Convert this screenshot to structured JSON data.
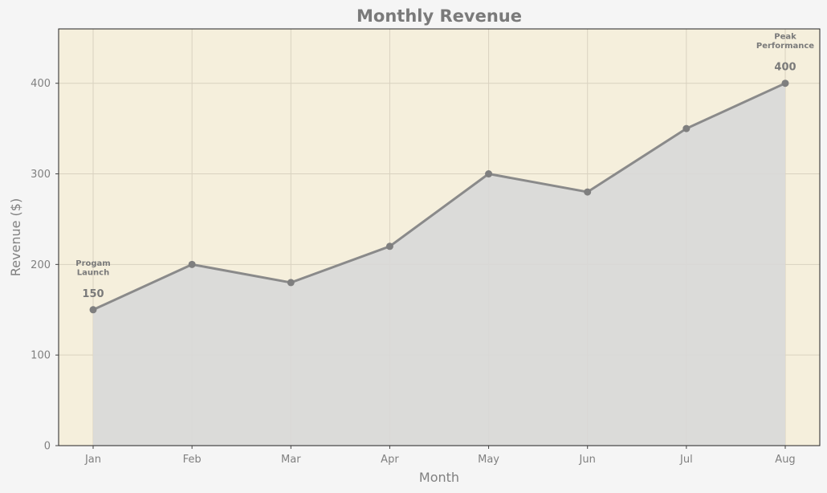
{
  "chart_data": {
    "type": "line",
    "title": "Monthly Revenue",
    "xlabel": "Month",
    "ylabel": "Revenue ($)",
    "categories": [
      "Jan",
      "Feb",
      "Mar",
      "Apr",
      "May",
      "Jun",
      "Jul",
      "Aug"
    ],
    "series": [
      {
        "values": [
          150,
          200,
          180,
          220,
          300,
          280,
          350,
          400
        ]
      }
    ],
    "ylim": [
      0,
      460
    ],
    "yticks": [
      0,
      100,
      200,
      300,
      400
    ],
    "grid": true,
    "area_fill": true,
    "data_labels": [
      {
        "index": 0,
        "text": "150"
      },
      {
        "index": 7,
        "text": "400"
      }
    ],
    "annotations": [
      {
        "index": 0,
        "lines": [
          "Progam",
          "Launch"
        ]
      },
      {
        "index": 7,
        "lines": [
          "Peak",
          "Performance"
        ]
      }
    ],
    "colors": {
      "figure_background": "#f5f5f5",
      "plot_background": "#f5efdc",
      "line": "#8a8a8a",
      "marker": "#7f7f7f",
      "area": "#d8d8d8",
      "grid": "#d9d2c0",
      "text": "#7a7a7a"
    }
  }
}
